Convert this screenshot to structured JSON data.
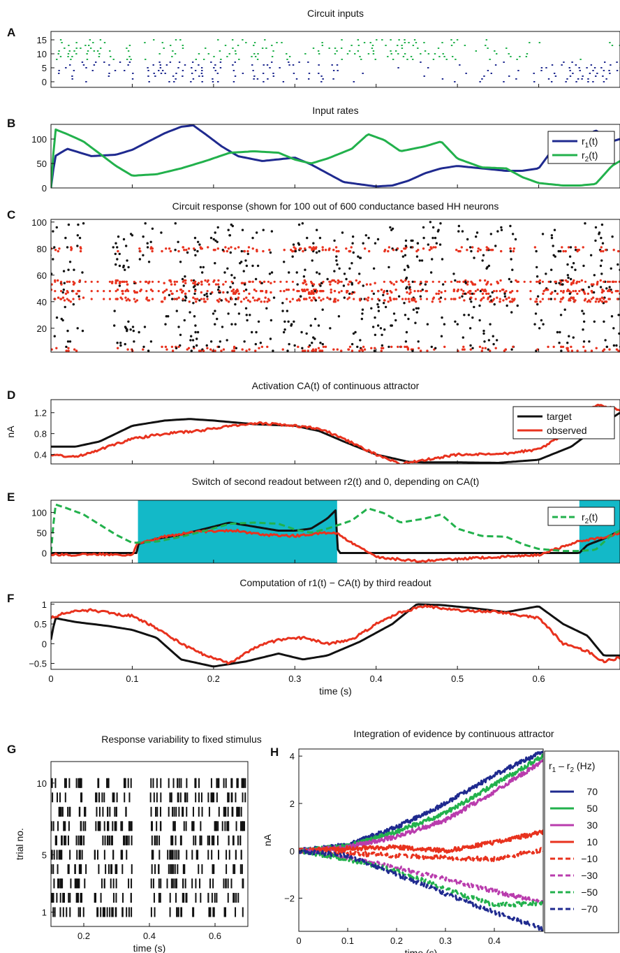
{
  "colors": {
    "blue": "#1f2a8f",
    "green": "#22b14c",
    "red": "#e8321e",
    "black": "#111111",
    "magenta": "#b93cad",
    "cyan": "#13b9c8"
  },
  "chart_data": [
    {
      "id": "A",
      "type": "scatter",
      "panel_label": "A",
      "title": "Circuit inputs",
      "xlim": [
        0,
        0.7
      ],
      "ylim": [
        -2,
        18
      ],
      "yticks": [
        0,
        5,
        10,
        15
      ],
      "series": [
        {
          "color": "blue",
          "channels": [
            0,
            7
          ]
        },
        {
          "color": "green",
          "channels": [
            8,
            15
          ]
        }
      ]
    },
    {
      "id": "B",
      "type": "line",
      "panel_label": "B",
      "title": "Input rates",
      "xlim": [
        0,
        0.7
      ],
      "ylim": [
        0,
        130
      ],
      "yticks": [
        0,
        50,
        100
      ],
      "legend": {
        "position": "top-right",
        "entries": [
          {
            "main": "r",
            "sub": "1",
            "tail": "(t)",
            "color": "blue"
          },
          {
            "main": "r",
            "sub": "2",
            "tail": "(t)",
            "color": "green"
          }
        ]
      },
      "series": [
        {
          "color": "blue",
          "x": [
            0,
            0.005,
            0.02,
            0.05,
            0.08,
            0.1,
            0.12,
            0.14,
            0.16,
            0.175,
            0.19,
            0.21,
            0.23,
            0.26,
            0.3,
            0.32,
            0.34,
            0.36,
            0.4,
            0.42,
            0.44,
            0.46,
            0.48,
            0.5,
            0.53,
            0.56,
            0.58,
            0.6,
            0.62,
            0.63,
            0.65,
            0.67,
            0.69,
            0.7
          ],
          "y": [
            0,
            65,
            80,
            65,
            68,
            78,
            95,
            112,
            125,
            128,
            110,
            85,
            65,
            55,
            62,
            48,
            30,
            12,
            3,
            5,
            15,
            30,
            40,
            45,
            40,
            35,
            35,
            40,
            85,
            100,
            95,
            118,
            95,
            100
          ]
        },
        {
          "color": "green",
          "x": [
            0,
            0.005,
            0.02,
            0.04,
            0.06,
            0.08,
            0.1,
            0.13,
            0.16,
            0.19,
            0.22,
            0.25,
            0.28,
            0.3,
            0.32,
            0.34,
            0.37,
            0.39,
            0.41,
            0.43,
            0.46,
            0.48,
            0.5,
            0.53,
            0.56,
            0.58,
            0.6,
            0.63,
            0.65,
            0.67,
            0.69,
            0.7
          ],
          "y": [
            0,
            120,
            110,
            95,
            70,
            45,
            25,
            28,
            40,
            55,
            72,
            75,
            72,
            58,
            50,
            60,
            80,
            110,
            98,
            75,
            85,
            95,
            60,
            42,
            40,
            22,
            10,
            5,
            5,
            8,
            45,
            55
          ]
        }
      ]
    },
    {
      "id": "C",
      "type": "scatter",
      "panel_label": "C",
      "title": "Circuit response (shown for 100 out of 600 conductance based HH neurons",
      "xlim": [
        0,
        0.7
      ],
      "ylim": [
        2,
        102
      ],
      "yticks": [
        20,
        40,
        60,
        80,
        100
      ],
      "series": [
        {
          "color": "red",
          "rows": [
            5,
            42,
            48,
            55,
            80
          ]
        },
        {
          "color": "black"
        }
      ]
    },
    {
      "id": "D",
      "type": "line",
      "panel_label": "D",
      "title": "Activation CA(t) of continuous attractor",
      "xlim": [
        0,
        0.7
      ],
      "ylim": [
        0.22,
        1.45
      ],
      "yticks": [
        0.4,
        0.8,
        1.2
      ],
      "ytick_labels": [
        "0.4",
        "0.8",
        "1.2"
      ],
      "ylabel": "nA",
      "legend": {
        "position": "top-right",
        "entries": [
          {
            "main": "target",
            "color": "black"
          },
          {
            "main": "observed",
            "color": "red"
          }
        ]
      },
      "series": [
        {
          "color": "black",
          "x": [
            0,
            0.03,
            0.06,
            0.1,
            0.14,
            0.17,
            0.2,
            0.25,
            0.3,
            0.33,
            0.36,
            0.4,
            0.44,
            0.46,
            0.5,
            0.55,
            0.6,
            0.64,
            0.67,
            0.7
          ],
          "y": [
            0.55,
            0.55,
            0.65,
            0.95,
            1.05,
            1.08,
            1.05,
            0.98,
            0.95,
            0.85,
            0.65,
            0.4,
            0.26,
            0.25,
            0.25,
            0.24,
            0.3,
            0.55,
            0.9,
            1.2
          ]
        },
        {
          "color": "red",
          "x": [
            0,
            0.03,
            0.06,
            0.1,
            0.14,
            0.18,
            0.22,
            0.26,
            0.3,
            0.33,
            0.36,
            0.4,
            0.43,
            0.46,
            0.5,
            0.55,
            0.6,
            0.64,
            0.67,
            0.7
          ],
          "y": [
            0.4,
            0.35,
            0.5,
            0.7,
            0.8,
            0.85,
            0.95,
            1.0,
            0.95,
            0.9,
            0.7,
            0.4,
            0.22,
            0.3,
            0.4,
            0.4,
            0.5,
            0.85,
            1.35,
            1.25
          ]
        }
      ]
    },
    {
      "id": "E",
      "type": "line",
      "panel_label": "E",
      "title": "Switch of second readout between r2(t) and 0, depending on CA(t)",
      "xlim": [
        0,
        0.7
      ],
      "ylim": [
        -25,
        130
      ],
      "yticks": [
        0,
        50,
        100
      ],
      "shaded_spans": [
        [
          0.107,
          0.352
        ],
        [
          0.65,
          0.7
        ]
      ],
      "legend": {
        "position": "top-right",
        "entries": [
          {
            "main": "r",
            "sub": "2",
            "tail": "(t)",
            "color": "green",
            "dashed": true
          }
        ]
      },
      "series": [
        {
          "color": "black",
          "x": [
            0,
            0.105,
            0.107,
            0.13,
            0.16,
            0.2,
            0.22,
            0.25,
            0.28,
            0.3,
            0.32,
            0.34,
            0.35,
            0.352,
            0.353,
            0.65,
            0.66,
            0.68,
            0.7
          ],
          "y": [
            0,
            0,
            22,
            35,
            45,
            65,
            75,
            65,
            55,
            55,
            60,
            85,
            105,
            105,
            0,
            0,
            20,
            35,
            55
          ]
        },
        {
          "color": "red",
          "x": [
            0,
            0.03,
            0.06,
            0.1,
            0.107,
            0.14,
            0.17,
            0.2,
            0.23,
            0.26,
            0.3,
            0.33,
            0.35,
            0.37,
            0.4,
            0.45,
            0.5,
            0.55,
            0.6,
            0.65,
            0.68,
            0.7
          ],
          "y": [
            -3,
            -5,
            -3,
            -4,
            25,
            40,
            50,
            55,
            55,
            45,
            42,
            48,
            50,
            25,
            -10,
            -20,
            -15,
            -10,
            -5,
            30,
            38,
            50
          ]
        },
        {
          "color": "green",
          "dashed": true,
          "x": [
            0,
            0.005,
            0.02,
            0.04,
            0.06,
            0.08,
            0.1,
            0.13,
            0.16,
            0.19,
            0.22,
            0.25,
            0.28,
            0.3,
            0.32,
            0.34,
            0.37,
            0.39,
            0.41,
            0.43,
            0.46,
            0.48,
            0.5,
            0.53,
            0.56,
            0.58,
            0.6,
            0.63,
            0.65,
            0.67,
            0.69,
            0.7
          ],
          "y": [
            0,
            120,
            110,
            95,
            70,
            45,
            25,
            28,
            40,
            55,
            72,
            75,
            72,
            58,
            50,
            60,
            80,
            110,
            98,
            75,
            85,
            95,
            60,
            42,
            40,
            22,
            10,
            5,
            5,
            8,
            45,
            55
          ]
        }
      ]
    },
    {
      "id": "F",
      "type": "line",
      "panel_label": "F",
      "title": "Computation of r1(t) − CA(t) by third readout",
      "xlim": [
        0,
        0.7
      ],
      "ylim": [
        -0.65,
        1.05
      ],
      "yticks": [
        -0.5,
        0,
        0.5,
        1
      ],
      "ytick_labels": [
        "−0.5",
        "0",
        "0.5",
        "1"
      ],
      "xticks": [
        0,
        0.1,
        0.2,
        0.3,
        0.4,
        0.5,
        0.6
      ],
      "xtick_labels": [
        "0",
        "0.1",
        "0.2",
        "0.3",
        "0.4",
        "0.5",
        "0.6"
      ],
      "xlabel": "time (s)",
      "series": [
        {
          "color": "black",
          "x": [
            0,
            0.005,
            0.03,
            0.07,
            0.1,
            0.13,
            0.16,
            0.2,
            0.24,
            0.28,
            0.31,
            0.34,
            0.38,
            0.42,
            0.45,
            0.48,
            0.52,
            0.56,
            0.6,
            0.63,
            0.66,
            0.68,
            0.7
          ],
          "y": [
            0.1,
            0.65,
            0.55,
            0.45,
            0.35,
            0.15,
            -0.4,
            -0.58,
            -0.45,
            -0.25,
            -0.4,
            -0.3,
            0.05,
            0.5,
            1.0,
            0.98,
            0.9,
            0.8,
            0.95,
            0.5,
            0.2,
            -0.3,
            -0.3
          ]
        },
        {
          "color": "red",
          "x": [
            0,
            0.02,
            0.05,
            0.08,
            0.1,
            0.13,
            0.16,
            0.19,
            0.22,
            0.25,
            0.28,
            0.31,
            0.34,
            0.37,
            0.4,
            0.43,
            0.46,
            0.5,
            0.55,
            0.6,
            0.63,
            0.66,
            0.68,
            0.7
          ],
          "y": [
            0.65,
            0.8,
            0.85,
            0.75,
            0.7,
            0.4,
            0.0,
            -0.3,
            -0.5,
            -0.1,
            0.1,
            0.15,
            0.0,
            0.1,
            0.5,
            0.8,
            0.95,
            0.85,
            0.8,
            0.65,
            0.0,
            -0.2,
            -0.45,
            -0.35
          ]
        }
      ]
    },
    {
      "id": "G",
      "type": "scatter",
      "panel_label": "G",
      "title": "Response variability to fixed stimulus",
      "xlim": [
        0.1,
        0.7
      ],
      "ylim": [
        0,
        11.5
      ],
      "yticks": [
        1,
        5,
        10
      ],
      "ytick_labels": [
        "1",
        "5",
        "10"
      ],
      "xticks": [
        0.2,
        0.4,
        0.6
      ],
      "xtick_labels": [
        "0.2",
        "0.4",
        "0.6"
      ],
      "xlabel": "time (s)",
      "ylabel": "trial no.",
      "trials": 10,
      "burst_centers": [
        0.115,
        0.145,
        0.19,
        0.25,
        0.285,
        0.33,
        0.42,
        0.47,
        0.5,
        0.545,
        0.595,
        0.64,
        0.675
      ]
    },
    {
      "id": "H",
      "type": "line",
      "panel_label": "H",
      "title": "Integration of evidence by continuous attractor",
      "xlim": [
        0,
        0.5
      ],
      "ylim": [
        -3.4,
        4.3
      ],
      "yticks": [
        -2,
        0,
        2,
        4
      ],
      "ytick_labels": [
        "−2",
        "0",
        "2",
        "4"
      ],
      "xticks": [
        0,
        0.1,
        0.2,
        0.3,
        0.4
      ],
      "xtick_labels": [
        "0",
        "0.1",
        "0.2",
        "0.3",
        "0.4"
      ],
      "xlabel": "time (s)",
      "ylabel": "nA",
      "legend_title_parts": {
        "a": "r",
        "a_sub": "1",
        "mid": " – r",
        "b_sub": "2",
        "tail": " (Hz)"
      },
      "series": [
        {
          "name": "70",
          "color": "blue",
          "dashed": false,
          "x": [
            0,
            0.1,
            0.2,
            0.3,
            0.4,
            0.5
          ],
          "y": [
            0,
            0.25,
            1.0,
            2.0,
            3.2,
            4.2
          ]
        },
        {
          "name": "50",
          "color": "green",
          "dashed": false,
          "x": [
            0,
            0.1,
            0.2,
            0.3,
            0.4,
            0.5
          ],
          "y": [
            0,
            0.2,
            0.8,
            1.6,
            2.8,
            4.0
          ]
        },
        {
          "name": "30",
          "color": "magenta",
          "dashed": false,
          "x": [
            0,
            0.1,
            0.2,
            0.3,
            0.4,
            0.5
          ],
          "y": [
            0,
            0.15,
            0.6,
            1.3,
            2.5,
            3.8
          ]
        },
        {
          "name": "10",
          "color": "red",
          "dashed": false,
          "x": [
            0,
            0.1,
            0.2,
            0.3,
            0.4,
            0.5
          ],
          "y": [
            0,
            0.1,
            0.15,
            0.0,
            0.35,
            0.8
          ]
        },
        {
          "name": "−10",
          "color": "red",
          "dashed": true,
          "x": [
            0,
            0.1,
            0.2,
            0.3,
            0.4,
            0.5
          ],
          "y": [
            0,
            -0.1,
            -0.2,
            -0.3,
            -0.35,
            0.05
          ]
        },
        {
          "name": "−30",
          "color": "magenta",
          "dashed": true,
          "x": [
            0,
            0.1,
            0.2,
            0.3,
            0.4,
            0.5
          ],
          "y": [
            0,
            -0.3,
            -0.7,
            -1.2,
            -1.7,
            -2.2
          ]
        },
        {
          "name": "−50",
          "color": "green",
          "dashed": true,
          "x": [
            0,
            0.1,
            0.2,
            0.3,
            0.4,
            0.5
          ],
          "y": [
            0,
            -0.35,
            -0.85,
            -1.6,
            -2.3,
            -2.2
          ]
        },
        {
          "name": "−70",
          "color": "blue",
          "dashed": true,
          "x": [
            0,
            0.1,
            0.2,
            0.3,
            0.4,
            0.5
          ],
          "y": [
            0,
            -0.2,
            -1.0,
            -1.8,
            -2.6,
            -3.3
          ]
        }
      ]
    }
  ]
}
